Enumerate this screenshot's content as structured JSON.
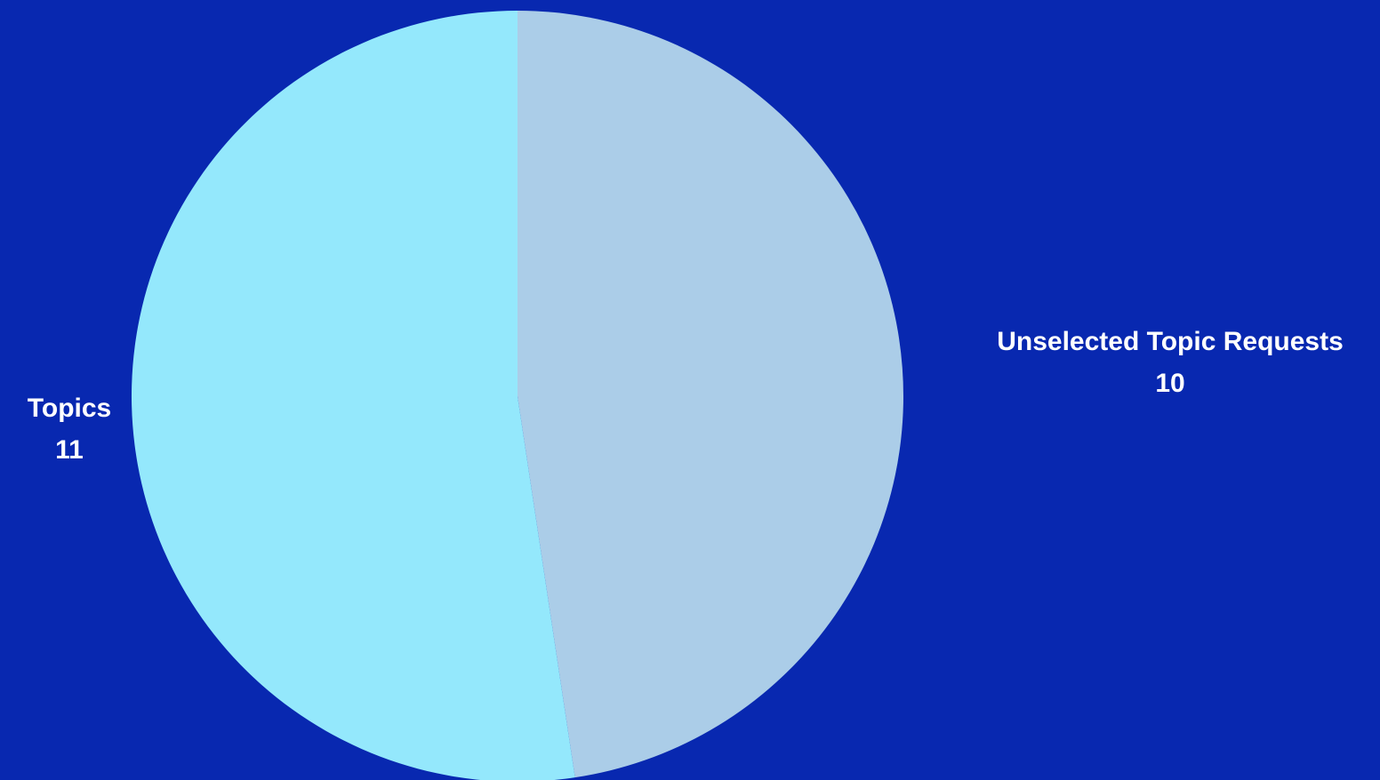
{
  "chart_data": {
    "type": "pie",
    "background": "#0828B0",
    "label_color": "#FFFFFF",
    "slices": [
      {
        "label": "Unselected Topic Requests",
        "value": 10,
        "display_value": "10",
        "color": "#ABCDE8"
      },
      {
        "label": "Topics",
        "value": 11,
        "display_value": "11",
        "color": "#94E8FC"
      }
    ]
  }
}
